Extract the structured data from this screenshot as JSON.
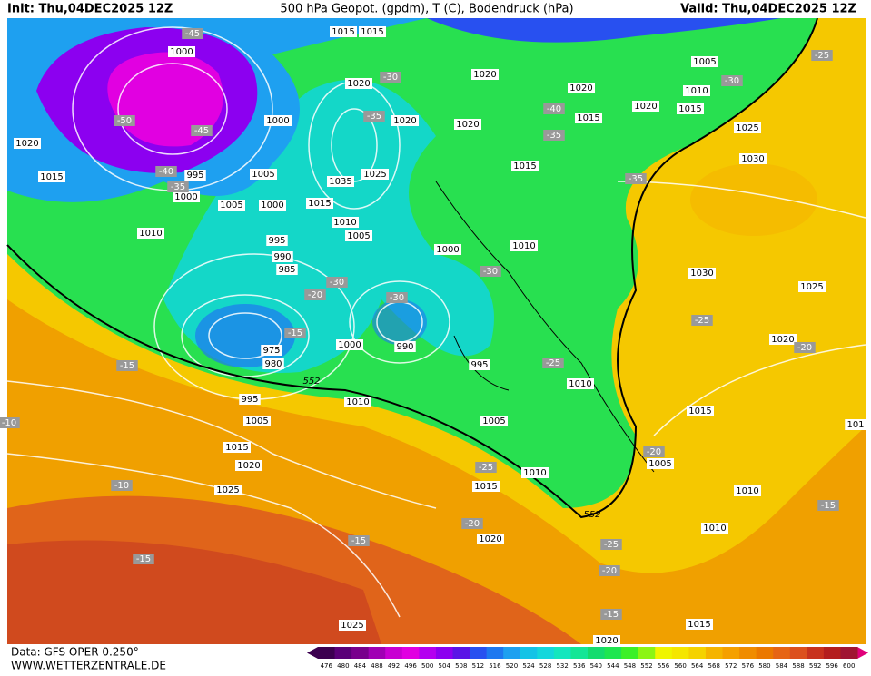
{
  "header": {
    "left": "Init: Thu,04DEC2025 12Z",
    "center": "500 hPa Geopot. (gpdm), T (C), Bodendruck (hPa)",
    "right": "Valid: Thu,04DEC2025 12Z"
  },
  "footer": {
    "source": "Data: GFS OPER 0.250°",
    "site": "WWW.WETTERZENTRALE.DE"
  },
  "map": {
    "pressure_labels": [
      "1015",
      "1015",
      "1000",
      "1020",
      "1015",
      "995",
      "1000",
      "1005",
      "1005",
      "1000",
      "1015",
      "1035",
      "1025",
      "1020",
      "1020",
      "1000",
      "1010",
      "1005",
      "995",
      "990",
      "985",
      "1000",
      "1010",
      "1020",
      "1015",
      "1020",
      "1020",
      "1015",
      "1020",
      "1005",
      "1010",
      "1015",
      "1025",
      "1030",
      "1030",
      "1025",
      "1020",
      "1010",
      "975",
      "980",
      "1000",
      "990",
      "995",
      "1010",
      "1010",
      "995",
      "1005",
      "1005",
      "1015",
      "1020",
      "1025",
      "1015",
      "1005",
      "1010",
      "1015",
      "1010",
      "1010",
      "1020",
      "1025",
      "1015",
      "1020",
      "101"
    ],
    "temperature_labels": [
      "-45",
      "-50",
      "-45",
      "-40",
      "-35",
      "-30",
      "-35",
      "-40",
      "-35",
      "-35",
      "-30",
      "-25",
      "-30",
      "-20",
      "-30",
      "-30",
      "-15",
      "-15",
      "-25",
      "-25",
      "-20",
      "-20",
      "-25",
      "-10",
      "-15",
      "-15",
      "-20",
      "-25",
      "-20",
      "-15",
      "-15",
      "-10"
    ],
    "geopotential_labels": [
      "552",
      "552"
    ]
  },
  "legend": {
    "labels": [
      "476",
      "480",
      "484",
      "488",
      "492",
      "496",
      "500",
      "504",
      "508",
      "512",
      "516",
      "520",
      "524",
      "528",
      "532",
      "536",
      "540",
      "544",
      "548",
      "552",
      "556",
      "560",
      "564",
      "568",
      "572",
      "576",
      "580",
      "584",
      "588",
      "592",
      "596",
      "600"
    ],
    "colors": [
      "#3c0050",
      "#5a0078",
      "#78008c",
      "#a000b4",
      "#c800d2",
      "#e100e1",
      "#b400f0",
      "#8c00f0",
      "#5a14e6",
      "#2850f0",
      "#1e78f0",
      "#1ea0f0",
      "#14c3e6",
      "#14d7dc",
      "#14e6be",
      "#14e696",
      "#14dc6e",
      "#1ee650",
      "#3cf028",
      "#8cf514",
      "#f0f500",
      "#f5e600",
      "#f5d200",
      "#f5b400",
      "#f5a000",
      "#f08c00",
      "#eb7800",
      "#e66414",
      "#dc501e",
      "#c8321e",
      "#b41e1e",
      "#a01432"
    ]
  }
}
